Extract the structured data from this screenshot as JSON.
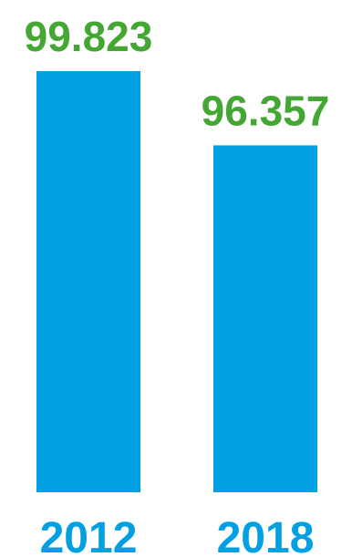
{
  "chart_data": {
    "type": "bar",
    "categories": [
      "2012",
      "2018"
    ],
    "values": [
      99.823,
      96.357
    ],
    "value_labels": [
      "99.823",
      "96.357"
    ],
    "title": "",
    "xlabel": "",
    "ylabel": "",
    "grid": false,
    "legend": "none",
    "bar_color": "#00A0E3",
    "value_label_color": "#44A633",
    "category_label_color": "#00A0E3"
  }
}
